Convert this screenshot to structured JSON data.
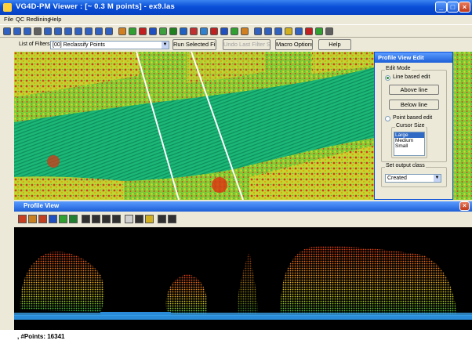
{
  "window": {
    "title": "VG4D-PM Viewer :  [~ 0.3 M points] - ex9.las"
  },
  "menu": [
    "File",
    "QC Redlining",
    "Help"
  ],
  "filter_bar": {
    "list_label": "List of Filters :",
    "filter_value": "[00] Reclassify Points",
    "run_button": "Run Selected Filter",
    "undo_button": "Undo Last Filter Step",
    "macro_button": "Macro Options",
    "help_button": "Help"
  },
  "edit_panel": {
    "title": "Profile View Edit",
    "edit_mode_label": "Edit Mode",
    "line_based": "Line based edit",
    "above_line": "Above line",
    "below_line": "Below line",
    "point_based": "Point based edit",
    "cursor_size_label": "Cursor Size",
    "cursor_sizes": [
      "Large",
      "Medium",
      "Small"
    ],
    "output_class_label": "Set output class",
    "output_class_value": "Created"
  },
  "profile": {
    "title": "Profile View"
  },
  "status": {
    "points": ", #Points: 16341"
  },
  "colors": {
    "accent": "#0a4fd8",
    "panel": "#ece9d8"
  },
  "icons": [
    "zoom-icon",
    "arrow-left-icon",
    "arrow-right-icon",
    "pan-icon",
    "layers-icon",
    "pointer-icon",
    "pencil-icon",
    "plus-icon",
    "minus-icon"
  ]
}
